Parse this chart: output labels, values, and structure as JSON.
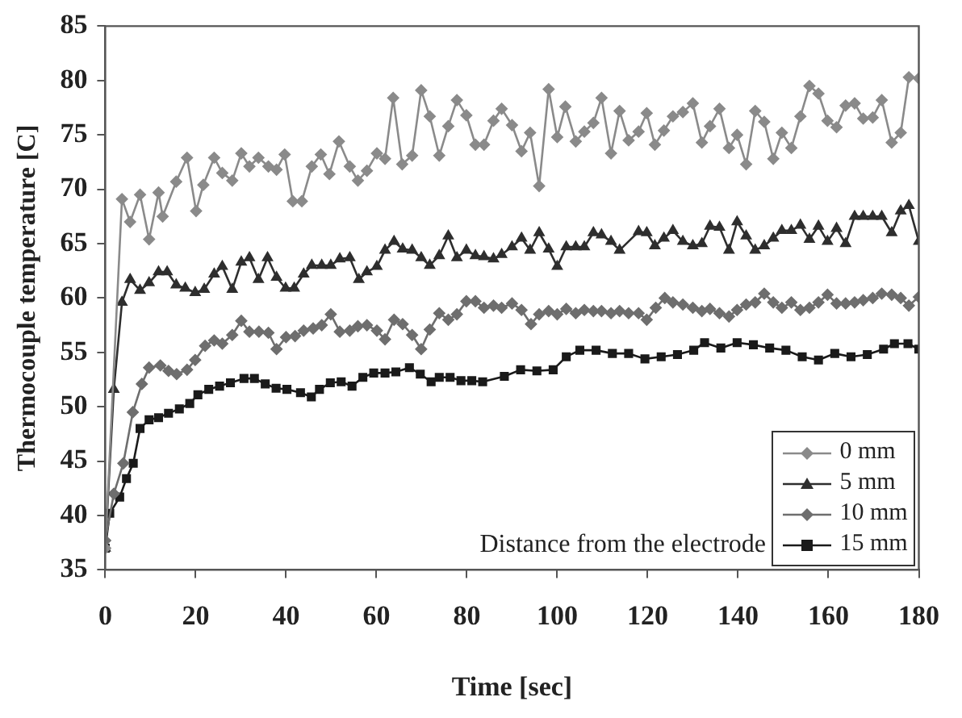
{
  "chart_data": {
    "type": "line",
    "xlabel": "Time [sec]",
    "ylabel": "Thermocouple temperature [C]",
    "legend_title": "Distance from the electrode",
    "xlim": [
      0,
      180
    ],
    "xticks": [
      0,
      20,
      40,
      60,
      80,
      100,
      120,
      140,
      160,
      180
    ],
    "ylim": [
      35,
      85
    ],
    "yticks": [
      35,
      40,
      45,
      50,
      55,
      60,
      65,
      70,
      75,
      80,
      85
    ],
    "grid": false,
    "legend": "bottom right",
    "line_style": "solid",
    "series": [
      {
        "name": "0 mm",
        "color": "#8a8a8a",
        "marker": "diamond",
        "x": [
          0,
          3.7,
          5.5,
          7.7,
          9.7,
          11.8,
          12.7,
          15.7,
          18.1,
          20.1,
          21.7,
          24.1,
          25.9,
          28.1,
          30.1,
          31.9,
          33.9,
          36.1,
          37.9,
          39.7,
          41.5,
          43.5,
          45.7,
          47.7,
          49.6,
          51.7,
          54.1,
          55.9,
          57.9,
          60.1,
          61.9,
          63.7,
          65.7,
          67.9,
          69.9,
          71.8,
          73.9,
          75.9,
          77.8,
          79.9,
          81.9,
          83.8,
          85.9,
          87.7,
          90,
          92.1,
          94,
          96,
          98.1,
          100,
          101.8,
          104.1,
          106,
          108,
          109.8,
          111.9,
          113.8,
          115.8,
          118,
          119.8,
          121.6,
          123.6,
          125.6,
          127.8,
          130,
          132,
          133.8,
          135.9,
          138,
          139.8,
          141.8,
          143.8,
          145.8,
          147.8,
          149.7,
          151.8,
          153.8,
          155.8,
          157.8,
          159.8,
          161.8,
          163.8,
          165.8,
          167.7,
          169.8,
          171.8,
          174,
          176,
          177.8,
          180
        ],
        "values": [
          37,
          69.1,
          67,
          69.5,
          65.4,
          69.7,
          67.5,
          70.7,
          72.9,
          68,
          70.4,
          72.9,
          71.5,
          70.8,
          73.3,
          72.1,
          72.9,
          72.1,
          71.8,
          73.2,
          68.9,
          68.9,
          72.1,
          73.2,
          71.4,
          74.4,
          72.1,
          70.8,
          71.7,
          73.3,
          72.8,
          78.4,
          72.3,
          73.1,
          79.1,
          76.7,
          73.1,
          75.8,
          78.2,
          76.8,
          74.1,
          74.1,
          76.3,
          77.4,
          75.9,
          73.5,
          75.2,
          70.3,
          79.2,
          74.8,
          77.6,
          74.4,
          75.3,
          76.1,
          78.4,
          73.3,
          77.2,
          74.5,
          75.3,
          77,
          74.1,
          75.4,
          76.7,
          77.1,
          77.9,
          74.3,
          75.8,
          77.4,
          73.8,
          75,
          72.3,
          77.2,
          76.2,
          72.8,
          75.2,
          73.8,
          76.7,
          79.5,
          78.8,
          76.3,
          75.7,
          77.7,
          77.9,
          76.5,
          76.6,
          78.2,
          74.3,
          75.2,
          80.3,
          80.2
        ]
      },
      {
        "name": "5 mm",
        "color": "#2e2e2e",
        "marker": "triangle",
        "x": [
          0,
          1.9,
          3.7,
          5.5,
          7.7,
          9.7,
          11.8,
          13.7,
          15.7,
          17.7,
          19.9,
          21.9,
          24.1,
          25.9,
          28.1,
          30.1,
          31.9,
          33.9,
          35.9,
          37.9,
          39.9,
          41.8,
          43.9,
          45.7,
          47.9,
          49.9,
          51.9,
          54.1,
          56.1,
          57.9,
          60.1,
          61.9,
          63.9,
          65.8,
          67.9,
          69.9,
          71.8,
          73.9,
          75.9,
          77.8,
          79.9,
          81.9,
          83.8,
          85.9,
          87.7,
          90,
          92.1,
          94,
          96,
          98.1,
          100,
          102,
          104.1,
          106,
          108,
          109.8,
          111.9,
          113.8,
          118,
          119.8,
          121.6,
          123.6,
          125.6,
          127.8,
          130,
          132,
          133.8,
          135.9,
          138,
          139.8,
          141.8,
          143.8,
          145.8,
          147.8,
          149.7,
          151.8,
          153.8,
          155.8,
          157.8,
          159.8,
          161.8,
          163.8,
          165.8,
          167.7,
          169.8,
          171.8,
          174,
          176,
          177.8,
          180
        ],
        "values": [
          37,
          51.6,
          59.6,
          61.7,
          60.7,
          61.4,
          62.4,
          62.4,
          61.2,
          60.9,
          60.5,
          60.8,
          62.2,
          62.9,
          60.8,
          63.3,
          63.7,
          61.7,
          63.7,
          61.9,
          60.9,
          60.9,
          62.2,
          63,
          63,
          63,
          63.6,
          63.7,
          61.7,
          62.4,
          62.9,
          64.4,
          65.2,
          64.5,
          64.4,
          63.7,
          63,
          63.9,
          65.7,
          63.7,
          64.4,
          63.9,
          63.8,
          63.6,
          64,
          64.7,
          65.5,
          64.4,
          66,
          64.5,
          62.9,
          64.7,
          64.7,
          64.7,
          66,
          65.8,
          65.2,
          64.4,
          66.1,
          66,
          64.8,
          65.5,
          66.2,
          65.2,
          64.8,
          65,
          66.6,
          66.5,
          64.4,
          67,
          65.7,
          64.4,
          64.8,
          65.5,
          66.2,
          66.2,
          66.7,
          65.4,
          66.6,
          65.2,
          66.4,
          65,
          67.5,
          67.5,
          67.5,
          67.5,
          66,
          68,
          68.5,
          65.2
        ]
      },
      {
        "name": "10 mm",
        "color": "#6e6e6e",
        "marker": "diamond",
        "x": [
          0,
          1.9,
          4,
          6.1,
          8.1,
          9.7,
          12.2,
          14,
          15.8,
          18.1,
          19.9,
          22.1,
          24.1,
          25.9,
          28.1,
          30.1,
          31.9,
          34,
          36.1,
          37.9,
          40,
          42,
          43.9,
          46,
          47.9,
          49.9,
          51.9,
          54.1,
          55.9,
          57.9,
          60.1,
          61.9,
          63.9,
          65.8,
          67.9,
          69.9,
          71.8,
          73.9,
          75.9,
          77.8,
          79.9,
          81.9,
          83.8,
          85.9,
          87.7,
          90,
          92.1,
          94.2,
          96,
          98.1,
          100,
          102,
          104.1,
          106,
          108,
          109.8,
          111.9,
          113.8,
          115.8,
          118,
          119.8,
          121.8,
          123.8,
          125.6,
          127.8,
          130,
          132,
          133.8,
          135.9,
          138,
          139.8,
          141.8,
          143.8,
          145.8,
          147.8,
          149.7,
          151.8,
          153.8,
          155.8,
          157.8,
          159.8,
          161.8,
          163.8,
          165.8,
          167.7,
          169.8,
          171.8,
          174,
          176,
          177.8,
          180
        ],
        "values": [
          37.7,
          42,
          44.8,
          49.5,
          52.1,
          53.6,
          53.8,
          53.3,
          53,
          53.4,
          54.3,
          55.6,
          56.1,
          55.8,
          56.6,
          57.9,
          56.9,
          56.9,
          56.8,
          55.3,
          56.4,
          56.5,
          57,
          57.2,
          57.5,
          58.5,
          56.9,
          57,
          57.4,
          57.5,
          57,
          56.2,
          58,
          57.6,
          56.6,
          55.3,
          57.1,
          58.6,
          58,
          58.5,
          59.7,
          59.7,
          59.1,
          59.3,
          59.1,
          59.5,
          58.9,
          57.6,
          58.5,
          58.8,
          58.5,
          59,
          58.6,
          58.9,
          58.8,
          58.8,
          58.6,
          58.8,
          58.6,
          58.6,
          58,
          59.1,
          60,
          59.6,
          59.4,
          59.1,
          58.8,
          59,
          58.6,
          58.3,
          58.9,
          59.4,
          59.6,
          60.4,
          59.6,
          59.1,
          59.6,
          58.9,
          59.1,
          59.6,
          60.3,
          59.5,
          59.5,
          59.6,
          59.8,
          60,
          60.4,
          60.3,
          60,
          59.3,
          60.1
        ]
      },
      {
        "name": "15 mm",
        "color": "#1a1a1a",
        "marker": "square",
        "x": [
          0,
          1,
          3.2,
          4.7,
          6.2,
          7.7,
          9.7,
          11.8,
          14,
          16.4,
          18.7,
          20.5,
          22.9,
          25.3,
          27.7,
          30.7,
          33,
          35.4,
          37.8,
          40.2,
          43.2,
          45.6,
          47.4,
          49.8,
          52.2,
          54.6,
          57,
          59.4,
          61.9,
          64.3,
          67.3,
          69.7,
          72.1,
          73.9,
          76.3,
          78.7,
          81.1,
          83.5,
          88.3,
          91.9,
          95.5,
          99.1,
          102,
          105,
          108.6,
          112.2,
          115.8,
          119.4,
          123,
          126.6,
          130.2,
          132.6,
          136.2,
          139.8,
          143.4,
          147,
          150.6,
          154.2,
          157.8,
          161.4,
          165,
          168.6,
          172.2,
          174.6,
          177.6,
          180
        ],
        "values": [
          37,
          40.2,
          41.7,
          43.4,
          44.8,
          48,
          48.8,
          49,
          49.4,
          49.8,
          50.3,
          51.1,
          51.6,
          51.9,
          52.2,
          52.6,
          52.6,
          52.1,
          51.7,
          51.6,
          51.3,
          50.9,
          51.6,
          52.2,
          52.3,
          51.9,
          52.7,
          53.1,
          53.1,
          53.2,
          53.6,
          53,
          52.3,
          52.7,
          52.7,
          52.4,
          52.4,
          52.3,
          52.8,
          53.4,
          53.3,
          53.4,
          54.6,
          55.2,
          55.2,
          54.9,
          54.9,
          54.4,
          54.6,
          54.8,
          55.2,
          55.9,
          55.4,
          55.9,
          55.7,
          55.4,
          55.2,
          54.6,
          54.3,
          54.9,
          54.6,
          54.8,
          55.3,
          55.8,
          55.8,
          55.3
        ]
      }
    ]
  }
}
